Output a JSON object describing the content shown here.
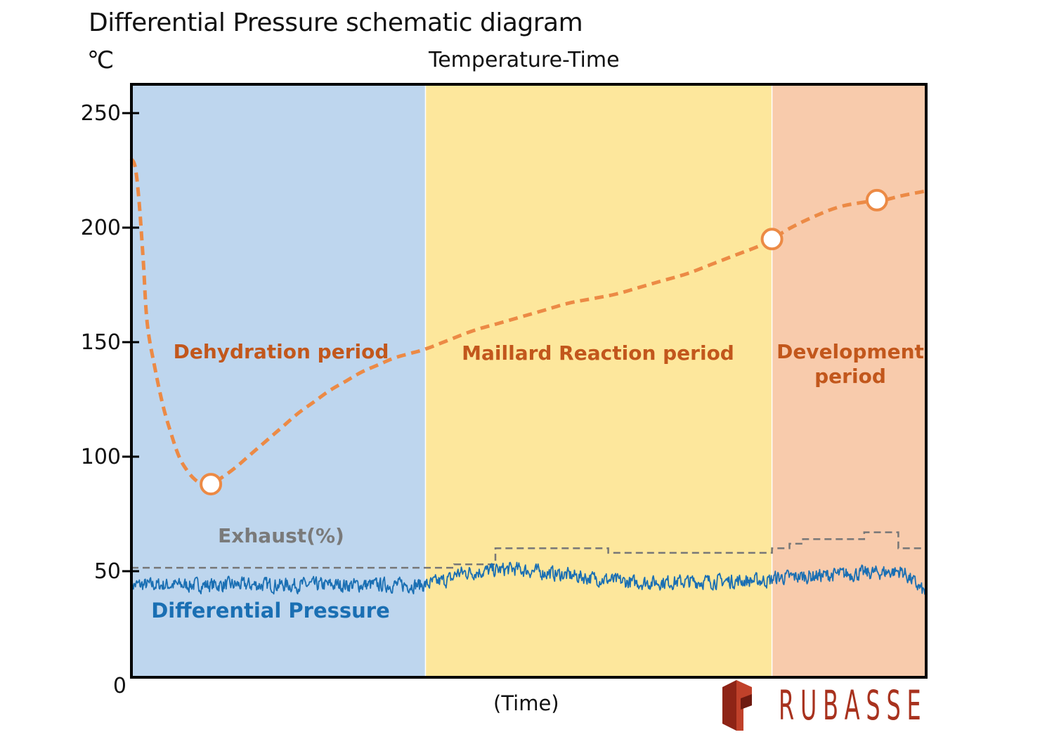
{
  "title": "Differential Pressure schematic diagram",
  "unit_label": "℃",
  "subtitle": "Temperature-Time",
  "xlabel": "(Time)",
  "brand": "RUBASSE",
  "colors": {
    "dehydration_bg": "#bed6ee",
    "maillard_bg": "#fde79c",
    "development_bg": "#f8cbac",
    "temperature_line": "#ec8a45",
    "exhaust_line": "#777777",
    "pressure_line": "#1a6fb3",
    "period_label": "#c2571c",
    "exhaust_label": "#7a7a7a",
    "pressure_label": "#1a6fb3",
    "brand": "#a8321e"
  },
  "chart_data": {
    "type": "line",
    "title": "Differential Pressure schematic diagram",
    "subtitle": "Temperature-Time",
    "xlabel": "(Time)",
    "ylabel": "℃",
    "ylim": [
      0,
      255
    ],
    "xlim": [
      0,
      100
    ],
    "yticks": [
      0,
      50,
      100,
      150,
      200,
      250
    ],
    "ytick_labels": [
      "0",
      "50",
      "100",
      "150",
      "200",
      "250"
    ],
    "grid": false,
    "periods": [
      {
        "name": "Dehydration period",
        "x_start": 0,
        "x_end": 37
      },
      {
        "name": "Maillard Reaction period",
        "x_start": 37,
        "x_end": 80.6
      },
      {
        "name": "Development period",
        "name_lines": [
          "Development",
          "period"
        ],
        "x_start": 80.6,
        "x_end": 100
      }
    ],
    "series": [
      {
        "name": "",
        "style": "dashed",
        "x": [
          0,
          0.5,
          1,
          1.5,
          2,
          3,
          4,
          5,
          6,
          7,
          8,
          9,
          10,
          11,
          13,
          15,
          17,
          19,
          21,
          23,
          25,
          27,
          29,
          31,
          33,
          35,
          37,
          40,
          43,
          46,
          49,
          52,
          55,
          58,
          61,
          64,
          67,
          70,
          73,
          76,
          79,
          80.6,
          83,
          86,
          89,
          92,
          94.6,
          97,
          100
        ],
        "y": [
          230,
          226,
          210,
          185,
          158,
          138,
          122,
          110,
          100,
          94,
          90,
          88,
          88,
          90,
          95,
          101,
          107,
          113,
          119,
          124,
          129,
          133,
          137,
          140,
          143,
          145,
          147,
          151,
          155,
          158,
          161,
          164,
          167,
          169,
          171,
          174,
          177,
          180,
          184,
          188,
          192,
          195,
          200,
          205,
          209,
          211,
          212,
          214,
          216
        ]
      },
      {
        "name": "Exhaust(%)",
        "style": "dashed",
        "x": [
          0,
          40.6,
          40.6,
          45.8,
          45.8,
          60,
          60,
          80.6,
          80.6,
          82.8,
          82.8,
          84.5,
          84.5,
          92.2,
          92.2,
          96.5,
          96.5,
          100
        ],
        "y": [
          51.5,
          51.5,
          53,
          53,
          60,
          60,
          58,
          58,
          60,
          60,
          62,
          62,
          64,
          64,
          67,
          67,
          60,
          60
        ]
      },
      {
        "name": "Differential Pressure",
        "style": "solid",
        "segments": [
          {
            "x_start": 0,
            "x_end": 37,
            "y_start": 44,
            "y_end": 44
          },
          {
            "x_start": 37,
            "x_end": 40.6,
            "y_start": 44,
            "y_end": 47
          },
          {
            "x_start": 40.6,
            "x_end": 48,
            "y_start": 49,
            "y_end": 51
          },
          {
            "x_start": 48,
            "x_end": 63,
            "y_start": 51,
            "y_end": 45
          },
          {
            "x_start": 63,
            "x_end": 80.6,
            "y_start": 45,
            "y_end": 46
          },
          {
            "x_start": 80.6,
            "x_end": 97,
            "y_start": 47,
            "y_end": 50
          },
          {
            "x_start": 97,
            "x_end": 100,
            "y_start": 50,
            "y_end": 40
          }
        ]
      }
    ],
    "markers": [
      {
        "x": 10,
        "y": 88
      },
      {
        "x": 80.6,
        "y": 195
      },
      {
        "x": 93.8,
        "y": 212
      }
    ],
    "annotations": [
      {
        "text": "Exhaust(%)",
        "x": 20.5,
        "y": 66
      },
      {
        "text": "Differential Pressure",
        "x": 17.5,
        "y": 32
      }
    ]
  }
}
